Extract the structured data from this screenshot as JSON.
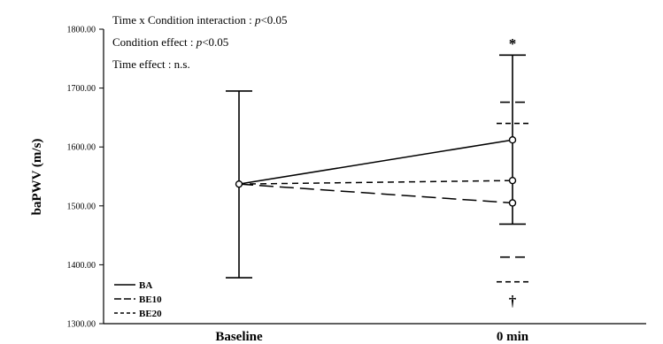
{
  "chart_data": {
    "type": "line",
    "ylabel": "baPWV (m/s)",
    "xlabel": "",
    "categories": [
      "Baseline",
      "0 min"
    ],
    "ylim": [
      1300,
      1800
    ],
    "yticks": [
      "1300.00",
      "1400.00",
      "1500.00",
      "1600.00",
      "1700.00",
      "1800.00"
    ],
    "grid": false,
    "legend_position": "bottom-left",
    "series": [
      {
        "name": "BA",
        "style": "solid",
        "values": [
          1537,
          1612
        ],
        "error_low": [
          1378,
          1469
        ],
        "error_high": [
          1695,
          1756
        ]
      },
      {
        "name": "BE10",
        "style": "long-dash",
        "values": [
          1537,
          1505
        ],
        "error_low": [
          1378,
          1413
        ],
        "error_high": [
          1695,
          1676
        ]
      },
      {
        "name": "BE20",
        "style": "short-dash",
        "values": [
          1537,
          1543
        ],
        "error_low": [
          1378,
          1371
        ],
        "error_high": [
          1695,
          1640
        ]
      }
    ],
    "annotations": [
      "Time x Condition interaction : p<0.05",
      "Condition effect : p<0.05",
      "Time effect : n.s."
    ],
    "symbols": {
      "top": "*",
      "bottom": "†"
    }
  }
}
